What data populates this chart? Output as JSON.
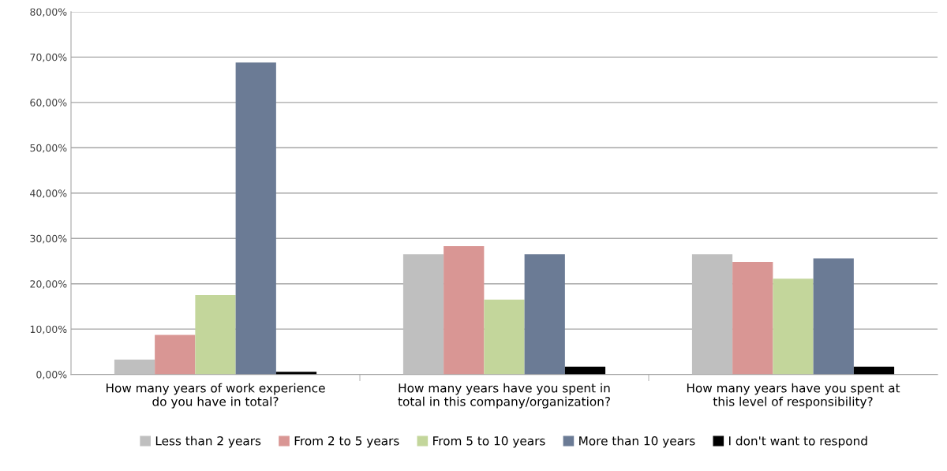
{
  "chart_data": {
    "type": "bar",
    "categories": [
      "How many years of work experience\ndo you have in total?",
      "How many years have you spent in\ntotal in this company/organization?",
      "How many years have you spent at\nthis level of responsibility?"
    ],
    "series": [
      {
        "name": "Less than 2 years",
        "color": "#bfbfbf",
        "values": [
          3.3,
          26.5,
          26.5
        ]
      },
      {
        "name": "From 2 to 5 years",
        "color": "#d99694",
        "values": [
          8.7,
          28.3,
          24.8
        ]
      },
      {
        "name": "From 5 to 10 years",
        "color": "#c3d69b",
        "values": [
          17.5,
          16.5,
          21.1
        ]
      },
      {
        "name": "More than 10 years",
        "color": "#6b7b95",
        "values": [
          68.8,
          26.5,
          25.6
        ]
      },
      {
        "name": "I don't want to respond",
        "color": "#000000",
        "values": [
          0.6,
          1.7,
          1.7
        ]
      }
    ],
    "ylim": [
      0,
      80
    ],
    "yticks": [
      {
        "value": 0,
        "label": "0,00%"
      },
      {
        "value": 10,
        "label": "10,00%"
      },
      {
        "value": 20,
        "label": "20,00%"
      },
      {
        "value": 30,
        "label": "30,00%"
      },
      {
        "value": 40,
        "label": "40,00%"
      },
      {
        "value": 50,
        "label": "50,00%"
      },
      {
        "value": 60,
        "label": "60,00%"
      },
      {
        "value": 70,
        "label": "70,00%"
      },
      {
        "value": 80,
        "label": "80,00%"
      }
    ],
    "grid": "y",
    "legend": "bottom"
  }
}
